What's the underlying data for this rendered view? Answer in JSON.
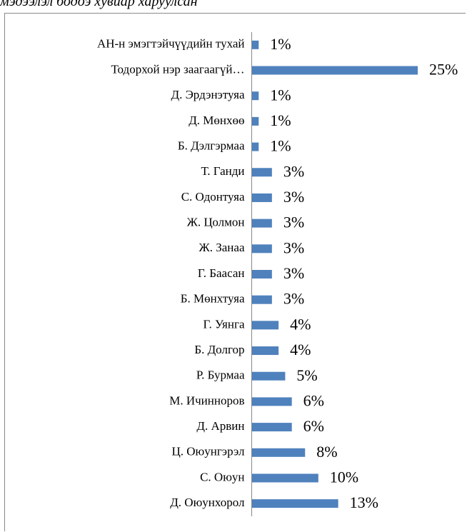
{
  "heading": "мэдээлэл бодоэ хувиар харуулсан",
  "chart_data": {
    "type": "bar",
    "orientation": "horizontal",
    "categories": [
      "АН-н эмэгтэйчүүдийн тухай",
      "Тодорхой нэр заагаагүй…",
      "Д. Эрдэнэтуяа",
      "Д. Мөнхөө",
      "Б. Дэлгэрмаа",
      "Т. Ганди",
      "С. Одонтуяа",
      "Ж. Цолмон",
      "Ж. Занаа",
      "Г. Баасан",
      "Б. Мөнхтуяа",
      "Г. Уянга",
      "Б. Долгор",
      "Р. Бурмаа",
      "М. Ичинноров",
      "Д. Арвин",
      "Ц. Оюунгэрэл",
      "С. Оюун",
      "Д. Оюунхорол"
    ],
    "values": [
      1,
      25,
      1,
      1,
      1,
      3,
      3,
      3,
      3,
      3,
      3,
      4,
      4,
      5,
      6,
      6,
      8,
      10,
      13
    ],
    "value_labels": [
      "1%",
      "25%",
      "1%",
      "1%",
      "1%",
      "3%",
      "3%",
      "3%",
      "3%",
      "3%",
      "3%",
      "4%",
      "4%",
      "5%",
      "6%",
      "6%",
      "8%",
      "10%",
      "13%"
    ],
    "unit": "%",
    "xlim": [
      0,
      25
    ],
    "grid": false,
    "legend": "none",
    "bar_color": "#4f81bd",
    "axis_color": "#868686"
  }
}
